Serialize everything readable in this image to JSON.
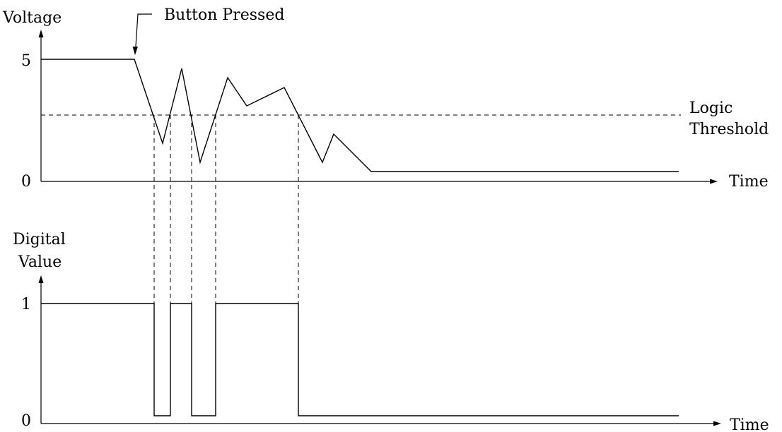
{
  "labels": {
    "voltage_axis": "Voltage",
    "button_pressed": "Button Pressed",
    "v_tick_5": "5",
    "v_tick_0": "0",
    "time_top": "Time",
    "logic": "Logic",
    "threshold": "Threshold",
    "digital_line1": "Digital",
    "digital_line2": "Value",
    "d_tick_1": "1",
    "d_tick_0": "0",
    "time_bottom": "Time"
  }
}
